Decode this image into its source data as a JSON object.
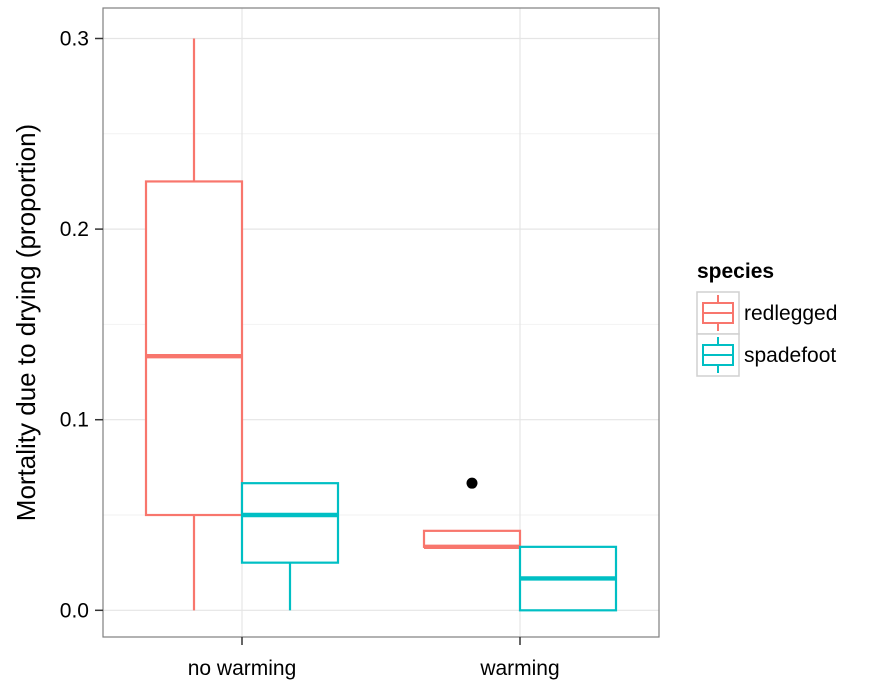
{
  "chart_data": {
    "type": "boxplot",
    "title": "",
    "xlabel": "",
    "ylabel": "Mortality due to drying (proportion)",
    "categories": [
      "no warming",
      "warming"
    ],
    "ylim": [
      -0.014,
      0.316
    ],
    "yticks": [
      0.0,
      0.1,
      0.2,
      0.3
    ],
    "ytick_labels": [
      "0.0",
      "0.1",
      "0.2",
      "0.3"
    ],
    "grid": true,
    "legend": {
      "title": "species",
      "placement": "right"
    },
    "series": [
      {
        "name": "redlegged",
        "color": "#F8766D",
        "boxes": [
          {
            "category": "no warming",
            "min": 0.0,
            "q1": 0.05,
            "median": 0.1333,
            "q3": 0.225,
            "max": 0.3,
            "outliers": []
          },
          {
            "category": "warming",
            "min": 0.0333,
            "q1": 0.0333,
            "median": 0.0333,
            "q3": 0.0417,
            "max": 0.0417,
            "outliers": [
              0.0667
            ]
          }
        ]
      },
      {
        "name": "spadefoot",
        "color": "#00BFC4",
        "boxes": [
          {
            "category": "no warming",
            "min": 0.0,
            "q1": 0.025,
            "median": 0.05,
            "q3": 0.0667,
            "max": 0.0667,
            "outliers": []
          },
          {
            "category": "warming",
            "min": 0.0,
            "q1": 0.0,
            "median": 0.0167,
            "q3": 0.0333,
            "max": 0.0333,
            "outliers": []
          }
        ]
      }
    ]
  }
}
